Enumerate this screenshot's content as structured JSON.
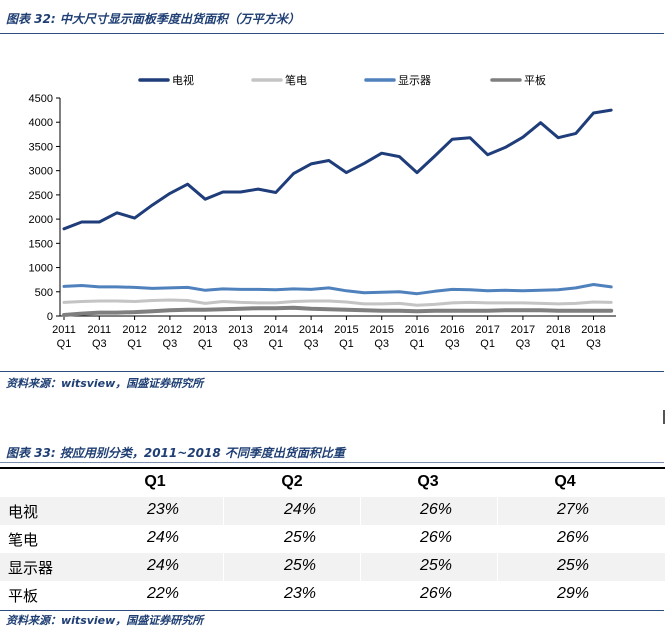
{
  "figure32": {
    "title": "图表 32: 中大尺寸显示面板季度出货面积（万平方米）",
    "source": "资料来源：witsview，国盛证券研究所"
  },
  "figure33": {
    "title": "图表 33: 按应用别分类，2011~2018 不同季度出货面积比重",
    "source": "资料来源：witsview，国盛证券研究所"
  },
  "chart_data": {
    "type": "line",
    "title": "",
    "xlabel": "",
    "ylabel": "",
    "ylim": [
      0,
      4500
    ],
    "yticks": [
      0,
      500,
      1000,
      1500,
      2000,
      2500,
      3000,
      3500,
      4000,
      4500
    ],
    "grid": false,
    "legend_position": "top",
    "x_tick_labels": [
      {
        "index": 0,
        "year": "2011",
        "quarter": "Q1"
      },
      {
        "index": 2,
        "year": "2011",
        "quarter": "Q3"
      },
      {
        "index": 4,
        "year": "2012",
        "quarter": "Q1"
      },
      {
        "index": 6,
        "year": "2012",
        "quarter": "Q3"
      },
      {
        "index": 8,
        "year": "2013",
        "quarter": "Q1"
      },
      {
        "index": 10,
        "year": "2013",
        "quarter": "Q3"
      },
      {
        "index": 12,
        "year": "2014",
        "quarter": "Q1"
      },
      {
        "index": 14,
        "year": "2014",
        "quarter": "Q3"
      },
      {
        "index": 16,
        "year": "2015",
        "quarter": "Q1"
      },
      {
        "index": 18,
        "year": "2015",
        "quarter": "Q3"
      },
      {
        "index": 20,
        "year": "2016",
        "quarter": "Q1"
      },
      {
        "index": 22,
        "year": "2016",
        "quarter": "Q3"
      },
      {
        "index": 24,
        "year": "2017",
        "quarter": "Q1"
      },
      {
        "index": 26,
        "year": "2017",
        "quarter": "Q3"
      },
      {
        "index": 28,
        "year": "2018",
        "quarter": "Q1"
      },
      {
        "index": 30,
        "year": "2018",
        "quarter": "Q3"
      }
    ],
    "series": [
      {
        "name": "电视",
        "color": "#1f3d7a",
        "width": 3,
        "values": [
          1800,
          1940,
          1940,
          2130,
          2020,
          2290,
          2530,
          2720,
          2410,
          2560,
          2560,
          2620,
          2550,
          2940,
          3140,
          3210,
          2960,
          3150,
          3360,
          3290,
          2960,
          3300,
          3650,
          3680,
          3330,
          3480,
          3690,
          3990,
          3680,
          3770,
          4190,
          4250
        ]
      },
      {
        "name": "笔电",
        "color": "#c4c4c4",
        "width": 3,
        "values": [
          280,
          300,
          310,
          310,
          300,
          320,
          330,
          320,
          260,
          300,
          280,
          270,
          270,
          300,
          310,
          310,
          290,
          250,
          250,
          260,
          220,
          240,
          270,
          280,
          270,
          270,
          270,
          260,
          250,
          260,
          290,
          280
        ]
      },
      {
        "name": "显示器",
        "color": "#4f81bd",
        "width": 3,
        "values": [
          610,
          630,
          600,
          600,
          590,
          570,
          580,
          590,
          530,
          560,
          550,
          550,
          540,
          560,
          550,
          580,
          520,
          480,
          490,
          500,
          460,
          510,
          550,
          540,
          520,
          530,
          520,
          530,
          540,
          580,
          650,
          600
        ]
      },
      {
        "name": "平板",
        "color": "#7f7f7f",
        "width": 4,
        "values": [
          20,
          50,
          70,
          70,
          80,
          100,
          120,
          130,
          130,
          140,
          150,
          160,
          160,
          170,
          150,
          140,
          130,
          120,
          110,
          110,
          100,
          110,
          110,
          110,
          110,
          120,
          120,
          120,
          110,
          110,
          110,
          110
        ]
      }
    ]
  },
  "share_table": {
    "columns": [
      "Q1",
      "Q2",
      "Q3",
      "Q4"
    ],
    "rows": [
      {
        "label": "电视",
        "values": [
          "23%",
          "24%",
          "26%",
          "27%"
        ]
      },
      {
        "label": "笔电",
        "values": [
          "24%",
          "25%",
          "26%",
          "26%"
        ]
      },
      {
        "label": "显示器",
        "values": [
          "24%",
          "25%",
          "25%",
          "25%"
        ]
      },
      {
        "label": "平板",
        "values": [
          "22%",
          "23%",
          "26%",
          "29%"
        ]
      }
    ]
  }
}
